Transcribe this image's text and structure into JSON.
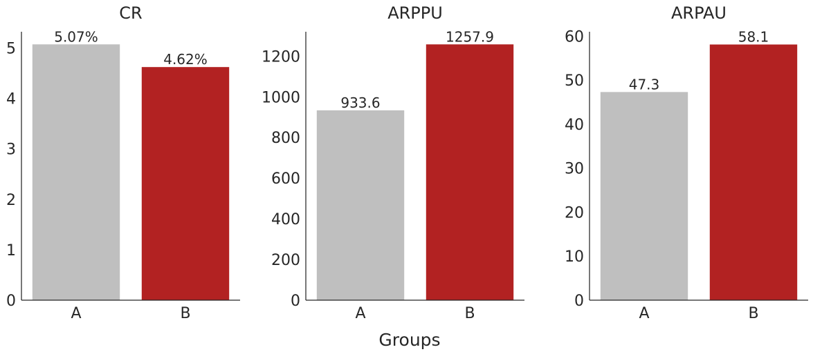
{
  "figure": {
    "xlabel": "Groups"
  },
  "colors": {
    "group_A": "#bfbfbf",
    "group_B": "#b22222",
    "text": "#262626"
  },
  "chart_data": [
    {
      "type": "bar",
      "title": "CR",
      "categories": [
        "A",
        "B"
      ],
      "values": [
        5.07,
        4.62
      ],
      "data_labels": [
        "5.07%",
        "4.62%"
      ],
      "ylim": [
        0,
        5.32
      ],
      "yticks": [
        0,
        1,
        2,
        3,
        4,
        5
      ],
      "xlabel": "",
      "ylabel": "",
      "grid": false
    },
    {
      "type": "bar",
      "title": "ARPPU",
      "categories": [
        "A",
        "B"
      ],
      "values": [
        933.6,
        1257.9
      ],
      "data_labels": [
        "933.6",
        "1257.9"
      ],
      "ylim": [
        0,
        1320
      ],
      "yticks": [
        0,
        200,
        400,
        600,
        800,
        1000,
        1200
      ],
      "xlabel": "Groups",
      "ylabel": "",
      "grid": false
    },
    {
      "type": "bar",
      "title": "ARPAU",
      "categories": [
        "A",
        "B"
      ],
      "values": [
        47.3,
        58.1
      ],
      "data_labels": [
        "47.3",
        "58.1"
      ],
      "ylim": [
        0,
        61
      ],
      "yticks": [
        0,
        10,
        20,
        30,
        40,
        50,
        60
      ],
      "xlabel": "",
      "ylabel": "",
      "grid": false
    }
  ]
}
